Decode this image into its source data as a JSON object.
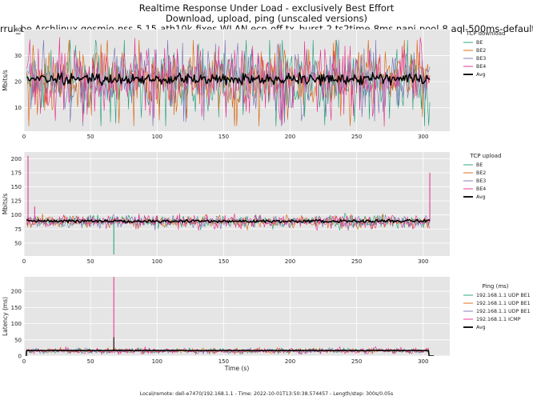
{
  "title_lines": [
    "Realtime Response Under Load - exclusively Best Effort",
    "Download, upload, ping (unscaled versions)",
    "rrul_be Archlinux qosmio-nss-5.15-ath10k-fixes WLAN ecn-off tx_burst-2 ts2time-8ms napi-pool-8 aql-500ms-default"
  ],
  "footer": "Local/remote: dell-e7470/192.168.1.1 - Time: 2022-10-01T13:50:38.574457 - Length/step: 300s/0.05s",
  "colors": {
    "background": "#e5e5e5",
    "grid": "#ffffff",
    "series": [
      "#1b9e77",
      "#d95f02",
      "#7570b3",
      "#e7298a"
    ],
    "avg": "#000000"
  },
  "chart_data": [
    {
      "id": "download",
      "type": "line",
      "ylabel": "Mbits/s",
      "xlabel": "",
      "xlim": [
        0,
        320
      ],
      "ylim": [
        1,
        40
      ],
      "xticks": [
        0,
        50,
        100,
        150,
        200,
        250,
        300
      ],
      "yticks": [
        10,
        20,
        30,
        40
      ],
      "legend_title": "TCP download",
      "legend_position": "right",
      "series": [
        {
          "name": "BE",
          "mean": 21,
          "spread": 9,
          "lo_clip": 3,
          "hi_clip": 36
        },
        {
          "name": "BE2",
          "mean": 21,
          "spread": 9,
          "lo_clip": 3,
          "hi_clip": 36
        },
        {
          "name": "BE3",
          "mean": 21,
          "spread": 9,
          "lo_clip": 3,
          "hi_clip": 36
        },
        {
          "name": "BE4",
          "mean": 21,
          "spread": 9,
          "lo_clip": 2,
          "hi_clip": 37
        }
      ],
      "avg": {
        "name": "Avg",
        "mean": 21,
        "spread": 1.6
      },
      "x_start": 2,
      "x_end": 305
    },
    {
      "id": "upload",
      "type": "line",
      "ylabel": "Mbits/s",
      "xlabel": "",
      "xlim": [
        0,
        320
      ],
      "ylim": [
        27,
        212
      ],
      "xticks": [
        0,
        50,
        100,
        150,
        200,
        250,
        300
      ],
      "yticks": [
        50,
        75,
        100,
        125,
        150,
        175,
        200
      ],
      "legend_title": "TCP upload",
      "legend_position": "right",
      "series": [
        {
          "name": "BE",
          "mean": 88,
          "spread": 7,
          "lo_clip": 68,
          "hi_clip": 115
        },
        {
          "name": "BE2",
          "mean": 88,
          "spread": 7,
          "lo_clip": 68,
          "hi_clip": 115
        },
        {
          "name": "BE3",
          "mean": 88,
          "spread": 7,
          "lo_clip": 68,
          "hi_clip": 115
        },
        {
          "name": "BE4",
          "mean": 88,
          "spread": 7,
          "lo_clip": 68,
          "hi_clip": 115
        }
      ],
      "avg": {
        "name": "Avg",
        "mean": 89,
        "spread": 2
      },
      "spikes": [
        {
          "series": 3,
          "x": 3,
          "y": 205
        },
        {
          "series": 3,
          "x": 305,
          "y": 175
        },
        {
          "series": 0,
          "x": 67.5,
          "y": 30
        },
        {
          "series": 3,
          "x": 8,
          "y": 115
        }
      ],
      "x_start": 2,
      "x_end": 305
    },
    {
      "id": "ping",
      "type": "line",
      "ylabel": "Latency (ms)",
      "xlabel": "Time (s)",
      "xlim": [
        0,
        320
      ],
      "ylim": [
        0,
        245
      ],
      "xticks": [
        0,
        50,
        100,
        150,
        200,
        250,
        300
      ],
      "yticks": [
        0,
        50,
        100,
        150,
        200
      ],
      "legend_title": "Ping (ms)",
      "legend_position": "right",
      "series": [
        {
          "name": "192.168.1.1 UDP BE1",
          "mean": 16,
          "spread": 5,
          "lo_clip": 5,
          "hi_clip": 40
        },
        {
          "name": "192.168.1.1 UDP BE1",
          "mean": 16,
          "spread": 5,
          "lo_clip": 5,
          "hi_clip": 40
        },
        {
          "name": "192.168.1.1 UDP BE1",
          "mean": 16,
          "spread": 5,
          "lo_clip": 5,
          "hi_clip": 40
        },
        {
          "name": "192.168.1.1 ICMP",
          "mean": 16,
          "spread": 6,
          "lo_clip": 5,
          "hi_clip": 55
        }
      ],
      "avg": {
        "name": "Avg",
        "mean": 17,
        "spread": 0.8
      },
      "spikes": [
        {
          "series": 3,
          "x": 67.5,
          "y": 245
        },
        {
          "series": 4,
          "x": 67.5,
          "y": 58
        }
      ],
      "x_start": 2,
      "x_end": 304
    }
  ]
}
